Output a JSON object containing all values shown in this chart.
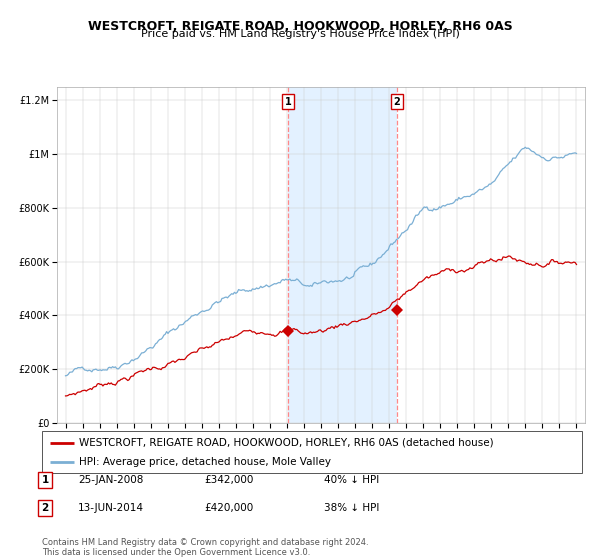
{
  "title": "WESTCROFT, REIGATE ROAD, HOOKWOOD, HORLEY, RH6 0AS",
  "subtitle": "Price paid vs. HM Land Registry's House Price Index (HPI)",
  "red_label": "WESTCROFT, REIGATE ROAD, HOOKWOOD, HORLEY, RH6 0AS (detached house)",
  "blue_label": "HPI: Average price, detached house, Mole Valley",
  "copyright": "Contains HM Land Registry data © Crown copyright and database right 2024.\nThis data is licensed under the Open Government Licence v3.0.",
  "transactions": [
    {
      "num": "1",
      "date": "25-JAN-2008",
      "price": "£342,000",
      "hpi": "40% ↓ HPI"
    },
    {
      "num": "2",
      "date": "13-JUN-2014",
      "price": "£420,000",
      "hpi": "38% ↓ HPI"
    }
  ],
  "t1_x": 2008.07,
  "t2_x": 2014.45,
  "t1_y": 342000,
  "t2_y": 420000,
  "ylim": [
    0,
    1250000
  ],
  "xlim_start": 1994.5,
  "xlim_end": 2025.5,
  "xticks": [
    1995,
    1996,
    1997,
    1998,
    1999,
    2000,
    2001,
    2002,
    2003,
    2004,
    2005,
    2006,
    2007,
    2008,
    2009,
    2010,
    2011,
    2012,
    2013,
    2014,
    2015,
    2016,
    2017,
    2018,
    2019,
    2020,
    2021,
    2022,
    2023,
    2024,
    2025
  ],
  "yticks": [
    0,
    200000,
    400000,
    600000,
    800000,
    1000000,
    1200000
  ],
  "ytick_labels": [
    "£0",
    "£200K",
    "£400K",
    "£600K",
    "£800K",
    "£1M",
    "£1.2M"
  ],
  "hpi_color": "#7bafd4",
  "price_color": "#cc0000",
  "shade_color": "#ddeeff",
  "dashed_color": "#ff8888",
  "title_fontsize": 9,
  "subtitle_fontsize": 8,
  "tick_fontsize": 7,
  "label_fontsize": 7.5
}
